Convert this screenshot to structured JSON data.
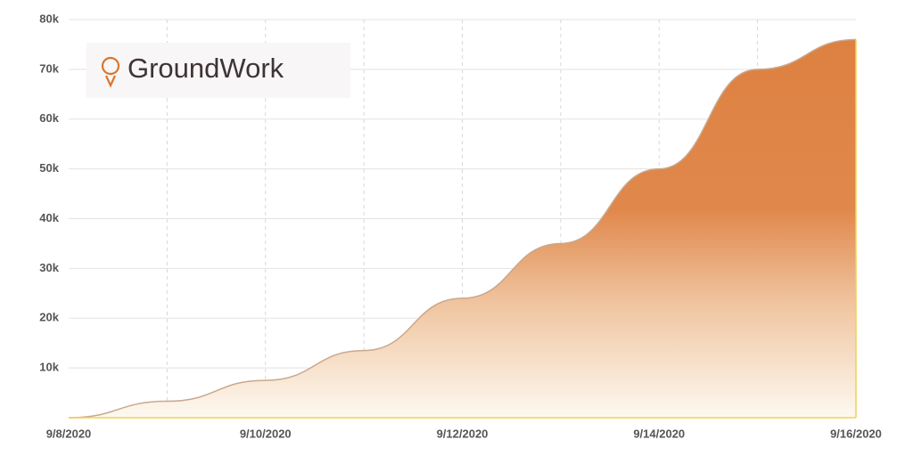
{
  "chart_data": {
    "type": "area",
    "logo_text": "GroundWork",
    "categories": [
      "9/8/2020",
      null,
      "9/10/2020",
      null,
      "9/12/2020",
      null,
      "9/14/2020",
      null,
      "9/16/2020"
    ],
    "series": [
      {
        "color": "#e0874a",
        "values": [
          0,
          3300,
          7500,
          13500,
          24000,
          35000,
          50000,
          70000,
          76000
        ]
      }
    ],
    "ylim": [
      0,
      80000
    ],
    "yticks": [
      {
        "value": 10000,
        "label": "10k"
      },
      {
        "value": 20000,
        "label": "20k"
      },
      {
        "value": 30000,
        "label": "30k"
      },
      {
        "value": 40000,
        "label": "40k"
      },
      {
        "value": 50000,
        "label": "50k"
      },
      {
        "value": 60000,
        "label": "60k"
      },
      {
        "value": 70000,
        "label": "70k"
      },
      {
        "value": 80000,
        "label": "80k"
      }
    ],
    "grid": true
  }
}
